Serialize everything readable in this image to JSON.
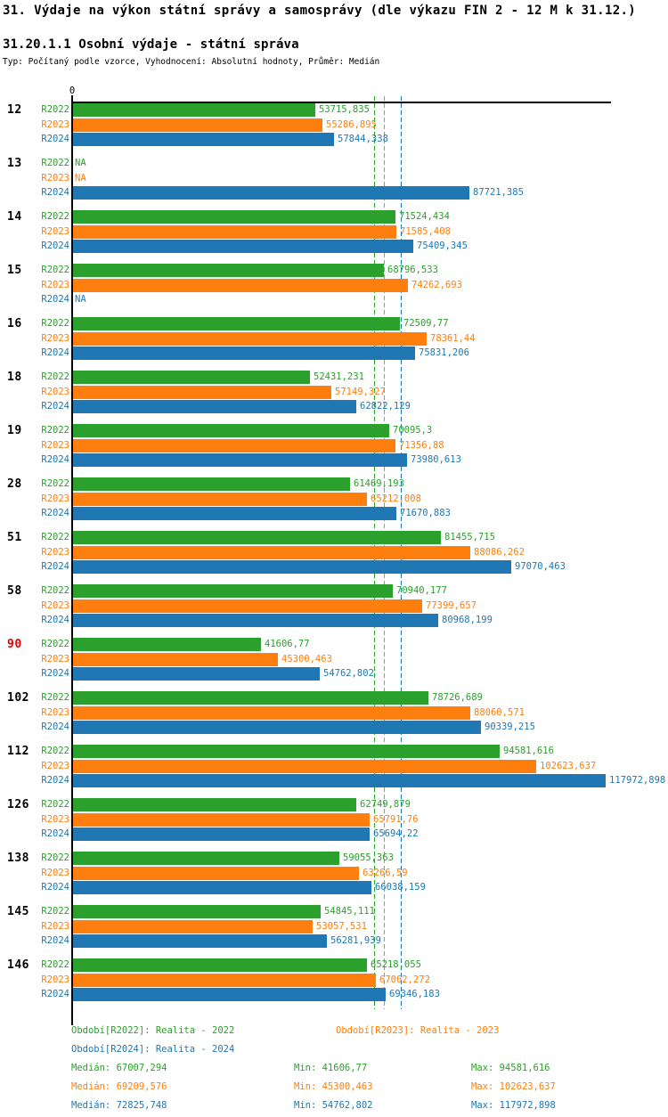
{
  "chart_data": {
    "type": "bar",
    "orientation": "horizontal",
    "title": "31. Výdaje na výkon státní správy a samosprávy (dle výkazu FIN 2 - 12 M k 31.12.)",
    "subtitle": "31.20.1.1 Osobní výdaje - státní správa",
    "meta": "Typ: Počítaný podle vzorce, Vyhodnocení: Absolutní hodnoty, Průměr: Medián",
    "x_axis": {
      "origin_label": "0",
      "min": 0,
      "max_data_value": 117972.898
    },
    "grid": false,
    "legend_position": "bottom",
    "series": [
      {
        "name": "R2022",
        "color": "#2ca02c"
      },
      {
        "name": "R2023",
        "color": "#ff7f0e"
      },
      {
        "name": "R2024",
        "color": "#1f77b4"
      }
    ],
    "groups": [
      {
        "category": "12",
        "bars": [
          {
            "series": "R2022",
            "value": 53715.835,
            "label": "53715,835"
          },
          {
            "series": "R2023",
            "value": 55286.895,
            "label": "55286,895"
          },
          {
            "series": "R2024",
            "value": 57844.338,
            "label": "57844,338"
          }
        ]
      },
      {
        "category": "13",
        "bars": [
          {
            "series": "R2022",
            "value": null,
            "label": "NA"
          },
          {
            "series": "R2023",
            "value": null,
            "label": "NA"
          },
          {
            "series": "R2024",
            "value": 87721.385,
            "label": "87721,385"
          }
        ]
      },
      {
        "category": "14",
        "bars": [
          {
            "series": "R2022",
            "value": 71524.434,
            "label": "71524,434"
          },
          {
            "series": "R2023",
            "value": 71585.408,
            "label": "71585,408"
          },
          {
            "series": "R2024",
            "value": 75409.345,
            "label": "75409,345"
          }
        ]
      },
      {
        "category": "15",
        "bars": [
          {
            "series": "R2022",
            "value": 68796.533,
            "label": "68796,533"
          },
          {
            "series": "R2023",
            "value": 74262.693,
            "label": "74262,693"
          },
          {
            "series": "R2024",
            "value": null,
            "label": "NA"
          }
        ]
      },
      {
        "category": "16",
        "bars": [
          {
            "series": "R2022",
            "value": 72509.77,
            "label": "72509,77"
          },
          {
            "series": "R2023",
            "value": 78361.44,
            "label": "78361,44"
          },
          {
            "series": "R2024",
            "value": 75831.206,
            "label": "75831,206"
          }
        ]
      },
      {
        "category": "18",
        "bars": [
          {
            "series": "R2022",
            "value": 52431.231,
            "label": "52431,231"
          },
          {
            "series": "R2023",
            "value": 57149.327,
            "label": "57149,327"
          },
          {
            "series": "R2024",
            "value": 62822.129,
            "label": "62822,129"
          }
        ]
      },
      {
        "category": "19",
        "bars": [
          {
            "series": "R2022",
            "value": 70095.3,
            "label": "70095,3"
          },
          {
            "series": "R2023",
            "value": 71356.88,
            "label": "71356,88"
          },
          {
            "series": "R2024",
            "value": 73980.613,
            "label": "73980,613"
          }
        ]
      },
      {
        "category": "28",
        "bars": [
          {
            "series": "R2022",
            "value": 61469.193,
            "label": "61469,193"
          },
          {
            "series": "R2023",
            "value": 65212.008,
            "label": "65212,008"
          },
          {
            "series": "R2024",
            "value": 71670.883,
            "label": "71670,883"
          }
        ]
      },
      {
        "category": "51",
        "bars": [
          {
            "series": "R2022",
            "value": 81455.715,
            "label": "81455,715"
          },
          {
            "series": "R2023",
            "value": 88086.262,
            "label": "88086,262"
          },
          {
            "series": "R2024",
            "value": 97070.463,
            "label": "97070,463"
          }
        ]
      },
      {
        "category": "58",
        "bars": [
          {
            "series": "R2022",
            "value": 70940.177,
            "label": "70940,177"
          },
          {
            "series": "R2023",
            "value": 77399.657,
            "label": "77399,657"
          },
          {
            "series": "R2024",
            "value": 80968.199,
            "label": "80968,199"
          }
        ]
      },
      {
        "category": "90",
        "category_color": "#e60000",
        "bars": [
          {
            "series": "R2022",
            "value": 41606.77,
            "label": "41606,77"
          },
          {
            "series": "R2023",
            "value": 45300.463,
            "label": "45300,463"
          },
          {
            "series": "R2024",
            "value": 54762.802,
            "label": "54762,802"
          }
        ]
      },
      {
        "category": "102",
        "bars": [
          {
            "series": "R2022",
            "value": 78726.689,
            "label": "78726,689"
          },
          {
            "series": "R2023",
            "value": 88060.571,
            "label": "88060,571"
          },
          {
            "series": "R2024",
            "value": 90339.215,
            "label": "90339,215"
          }
        ]
      },
      {
        "category": "112",
        "bars": [
          {
            "series": "R2022",
            "value": 94581.616,
            "label": "94581,616"
          },
          {
            "series": "R2023",
            "value": 102623.637,
            "label": "102623,637"
          },
          {
            "series": "R2024",
            "value": 117972.898,
            "label": "117972,898"
          }
        ]
      },
      {
        "category": "126",
        "bars": [
          {
            "series": "R2022",
            "value": 62749.879,
            "label": "62749,879"
          },
          {
            "series": "R2023",
            "value": 65791.76,
            "label": "65791,76"
          },
          {
            "series": "R2024",
            "value": 65694.22,
            "label": "65694,22"
          }
        ]
      },
      {
        "category": "138",
        "bars": [
          {
            "series": "R2022",
            "value": 59055.363,
            "label": "59055,363"
          },
          {
            "series": "R2023",
            "value": 63266.59,
            "label": "63266,59"
          },
          {
            "series": "R2024",
            "value": 66038.159,
            "label": "66038,159"
          }
        ]
      },
      {
        "category": "145",
        "bars": [
          {
            "series": "R2022",
            "value": 54845.111,
            "label": "54845,111"
          },
          {
            "series": "R2023",
            "value": 53057.531,
            "label": "53057,531"
          },
          {
            "series": "R2024",
            "value": 56281.939,
            "label": "56281,939"
          }
        ]
      },
      {
        "category": "146",
        "bars": [
          {
            "series": "R2022",
            "value": 65218.055,
            "label": "65218,055"
          },
          {
            "series": "R2023",
            "value": 67062.272,
            "label": "67062,272"
          },
          {
            "series": "R2024",
            "value": 69346.183,
            "label": "69346,183"
          }
        ]
      }
    ],
    "reference_lines": [
      {
        "series": "R2022",
        "value": 67007.294,
        "color": "#2ca02c",
        "style": "dashed"
      },
      {
        "series": "R2023",
        "value": 69209.576,
        "color": "#ff7f0e",
        "style": "dashed"
      },
      {
        "series": "R2024",
        "value": 72825.748,
        "color": "#1f77b4",
        "style": "dashed"
      }
    ]
  },
  "legend": {
    "items": [
      {
        "series": "R2022",
        "text": "Období[R2022]: Realita - 2022",
        "color": "#2ca02c"
      },
      {
        "series": "R2023",
        "text": "Období[R2023]: Realita - 2023",
        "color": "#ff7f0e"
      },
      {
        "series": "R2024",
        "text": "Období[R2024]: Realita - 2024",
        "color": "#1f77b4"
      }
    ]
  },
  "stats": {
    "rows": [
      {
        "series": "R2022",
        "color": "#2ca02c",
        "median": 67007.294,
        "median_label": "Medián: 67007,294",
        "min": 41606.77,
        "min_label": "Min: 41606,77",
        "max": 94581.616,
        "max_label": "Max: 94581,616"
      },
      {
        "series": "R2023",
        "color": "#ff7f0e",
        "median": 69209.576,
        "median_label": "Medián: 69209,576",
        "min": 45300.463,
        "min_label": "Min: 45300,463",
        "max": 102623.637,
        "max_label": "Max: 102623,637"
      },
      {
        "series": "R2024",
        "color": "#1f77b4",
        "median": 72825.748,
        "median_label": "Medián: 72825,748",
        "min": 54762.802,
        "min_label": "Min: 54762,802",
        "max": 117972.898,
        "max_label": "Max: 117972,898"
      }
    ]
  }
}
